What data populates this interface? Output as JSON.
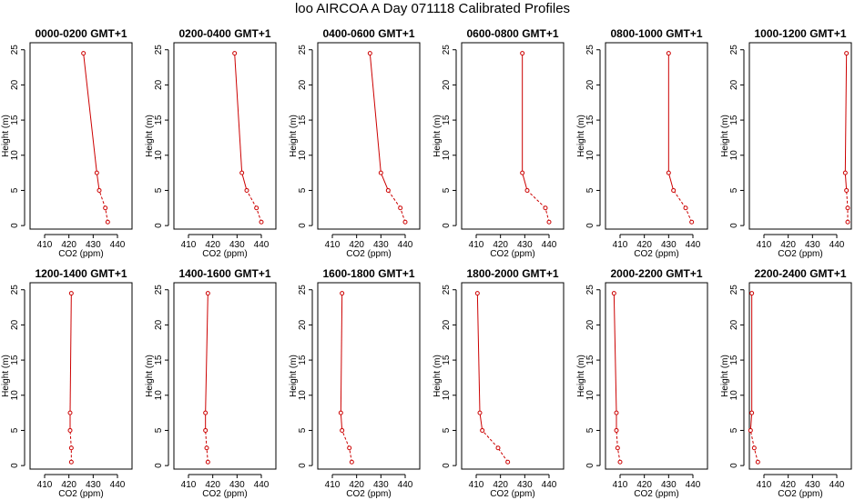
{
  "figure": {
    "title": "loo AIRCOA A  Day 071118  Calibrated Profiles"
  },
  "chart_data": [
    {
      "type": "line",
      "title": "0000-0200 GMT+1",
      "xlabel": "CO2 (ppm)",
      "ylabel": "Height (m)",
      "xticks": [
        410,
        420,
        430,
        440
      ],
      "yticks": [
        0,
        5,
        10,
        15,
        20,
        25
      ],
      "xlim": [
        404,
        446
      ],
      "ylim": [
        -0.5,
        26
      ],
      "color": "#cc0000",
      "series": [
        {
          "x": [
            436,
            435,
            432.5,
            431.5,
            426
          ],
          "y": [
            0.5,
            2.5,
            5,
            7.5,
            24.5
          ]
        }
      ]
    },
    {
      "type": "line",
      "title": "0200-0400 GMT+1",
      "xlabel": "CO2 (ppm)",
      "ylabel": "Height (m)",
      "xticks": [
        410,
        420,
        430,
        440
      ],
      "yticks": [
        0,
        5,
        10,
        15,
        20,
        25
      ],
      "xlim": [
        404,
        446
      ],
      "ylim": [
        -0.5,
        26
      ],
      "color": "#cc0000",
      "series": [
        {
          "x": [
            440,
            438,
            434,
            432,
            429
          ],
          "y": [
            0.5,
            2.5,
            5,
            7.5,
            24.5
          ]
        }
      ]
    },
    {
      "type": "line",
      "title": "0400-0600 GMT+1",
      "xlabel": "CO2 (ppm)",
      "ylabel": "Height (m)",
      "xticks": [
        410,
        420,
        430,
        440
      ],
      "yticks": [
        0,
        5,
        10,
        15,
        20,
        25
      ],
      "xlim": [
        404,
        446
      ],
      "ylim": [
        -0.5,
        26
      ],
      "color": "#cc0000",
      "series": [
        {
          "x": [
            440,
            438,
            433,
            430,
            425.5
          ],
          "y": [
            0.5,
            2.5,
            5,
            7.5,
            24.5
          ]
        }
      ]
    },
    {
      "type": "line",
      "title": "0600-0800 GMT+1",
      "xlabel": "CO2 (ppm)",
      "ylabel": "Height (m)",
      "xticks": [
        410,
        420,
        430,
        440
      ],
      "yticks": [
        0,
        5,
        10,
        15,
        20,
        25
      ],
      "xlim": [
        404,
        446
      ],
      "ylim": [
        -0.5,
        26
      ],
      "color": "#cc0000",
      "series": [
        {
          "x": [
            440,
            438.5,
            431,
            429,
            429
          ],
          "y": [
            0.5,
            2.5,
            5,
            7.5,
            24.5
          ]
        }
      ]
    },
    {
      "type": "line",
      "title": "0800-1000 GMT+1",
      "xlabel": "CO2 (ppm)",
      "ylabel": "Height (m)",
      "xticks": [
        410,
        420,
        430,
        440
      ],
      "yticks": [
        0,
        5,
        10,
        15,
        20,
        25
      ],
      "xlim": [
        404,
        446
      ],
      "ylim": [
        -0.5,
        26
      ],
      "color": "#cc0000",
      "series": [
        {
          "x": [
            439.5,
            437,
            432,
            430,
            430
          ],
          "y": [
            0.5,
            2.5,
            5,
            7.5,
            24.5
          ]
        }
      ]
    },
    {
      "type": "line",
      "title": "1000-1200 GMT+1",
      "xlabel": "CO2 (ppm)",
      "ylabel": "Height (m)",
      "xticks": [
        410,
        420,
        430,
        440
      ],
      "yticks": [
        0,
        5,
        10,
        15,
        20,
        25
      ],
      "xlim": [
        404,
        446
      ],
      "ylim": [
        -0.5,
        26
      ],
      "color": "#cc0000",
      "series": [
        {
          "x": [
            444.5,
            444.5,
            444,
            443.5,
            444
          ],
          "y": [
            0.5,
            2.5,
            5,
            7.5,
            24.5
          ]
        }
      ]
    },
    {
      "type": "line",
      "title": "1200-1400 GMT+1",
      "xlabel": "CO2 (ppm)",
      "ylabel": "Height (m)",
      "xticks": [
        410,
        420,
        430,
        440
      ],
      "yticks": [
        0,
        5,
        10,
        15,
        20,
        25
      ],
      "xlim": [
        404,
        446
      ],
      "ylim": [
        -0.5,
        26
      ],
      "color": "#cc0000",
      "series": [
        {
          "x": [
            421,
            421,
            420.5,
            420.5,
            421
          ],
          "y": [
            0.5,
            2.5,
            5,
            7.5,
            24.5
          ]
        }
      ]
    },
    {
      "type": "line",
      "title": "1400-1600 GMT+1",
      "xlabel": "CO2 (ppm)",
      "ylabel": "Height (m)",
      "xticks": [
        410,
        420,
        430,
        440
      ],
      "yticks": [
        0,
        5,
        10,
        15,
        20,
        25
      ],
      "xlim": [
        404,
        446
      ],
      "ylim": [
        -0.5,
        26
      ],
      "color": "#cc0000",
      "series": [
        {
          "x": [
            418,
            417.5,
            417,
            417,
            418
          ],
          "y": [
            0.5,
            2.5,
            5,
            7.5,
            24.5
          ]
        }
      ]
    },
    {
      "type": "line",
      "title": "1600-1800 GMT+1",
      "xlabel": "CO2 (ppm)",
      "ylabel": "Height (m)",
      "xticks": [
        410,
        420,
        430,
        440
      ],
      "yticks": [
        0,
        5,
        10,
        15,
        20,
        25
      ],
      "xlim": [
        404,
        446
      ],
      "ylim": [
        -0.5,
        26
      ],
      "color": "#cc0000",
      "series": [
        {
          "x": [
            418,
            417,
            414,
            413.5,
            414
          ],
          "y": [
            0.5,
            2.5,
            5,
            7.5,
            24.5
          ]
        }
      ]
    },
    {
      "type": "line",
      "title": "1800-2000 GMT+1",
      "xlabel": "CO2 (ppm)",
      "ylabel": "Height (m)",
      "xticks": [
        410,
        420,
        430,
        440
      ],
      "yticks": [
        0,
        5,
        10,
        15,
        20,
        25
      ],
      "xlim": [
        404,
        446
      ],
      "ylim": [
        -0.5,
        26
      ],
      "color": "#cc0000",
      "series": [
        {
          "x": [
            423,
            419,
            412.5,
            411.5,
            410.5
          ],
          "y": [
            0.5,
            2.5,
            5,
            7.5,
            24.5
          ]
        }
      ]
    },
    {
      "type": "line",
      "title": "2000-2200 GMT+1",
      "xlabel": "CO2 (ppm)",
      "ylabel": "Height (m)",
      "xticks": [
        410,
        420,
        430,
        440
      ],
      "yticks": [
        0,
        5,
        10,
        15,
        20,
        25
      ],
      "xlim": [
        404,
        446
      ],
      "ylim": [
        -0.5,
        26
      ],
      "color": "#cc0000",
      "series": [
        {
          "x": [
            410,
            409,
            408.5,
            408.5,
            407.5
          ],
          "y": [
            0.5,
            2.5,
            5,
            7.5,
            24.5
          ]
        }
      ]
    },
    {
      "type": "line",
      "title": "2200-2400 GMT+1",
      "xlabel": "CO2 (ppm)",
      "ylabel": "Height (m)",
      "xticks": [
        410,
        420,
        430,
        440
      ],
      "yticks": [
        0,
        5,
        10,
        15,
        20,
        25
      ],
      "xlim": [
        404,
        446
      ],
      "ylim": [
        -0.5,
        26
      ],
      "color": "#cc0000",
      "series": [
        {
          "x": [
            407.5,
            406,
            404.5,
            405,
            405
          ],
          "y": [
            0.5,
            2.5,
            5,
            7.5,
            24.5
          ]
        }
      ]
    }
  ]
}
